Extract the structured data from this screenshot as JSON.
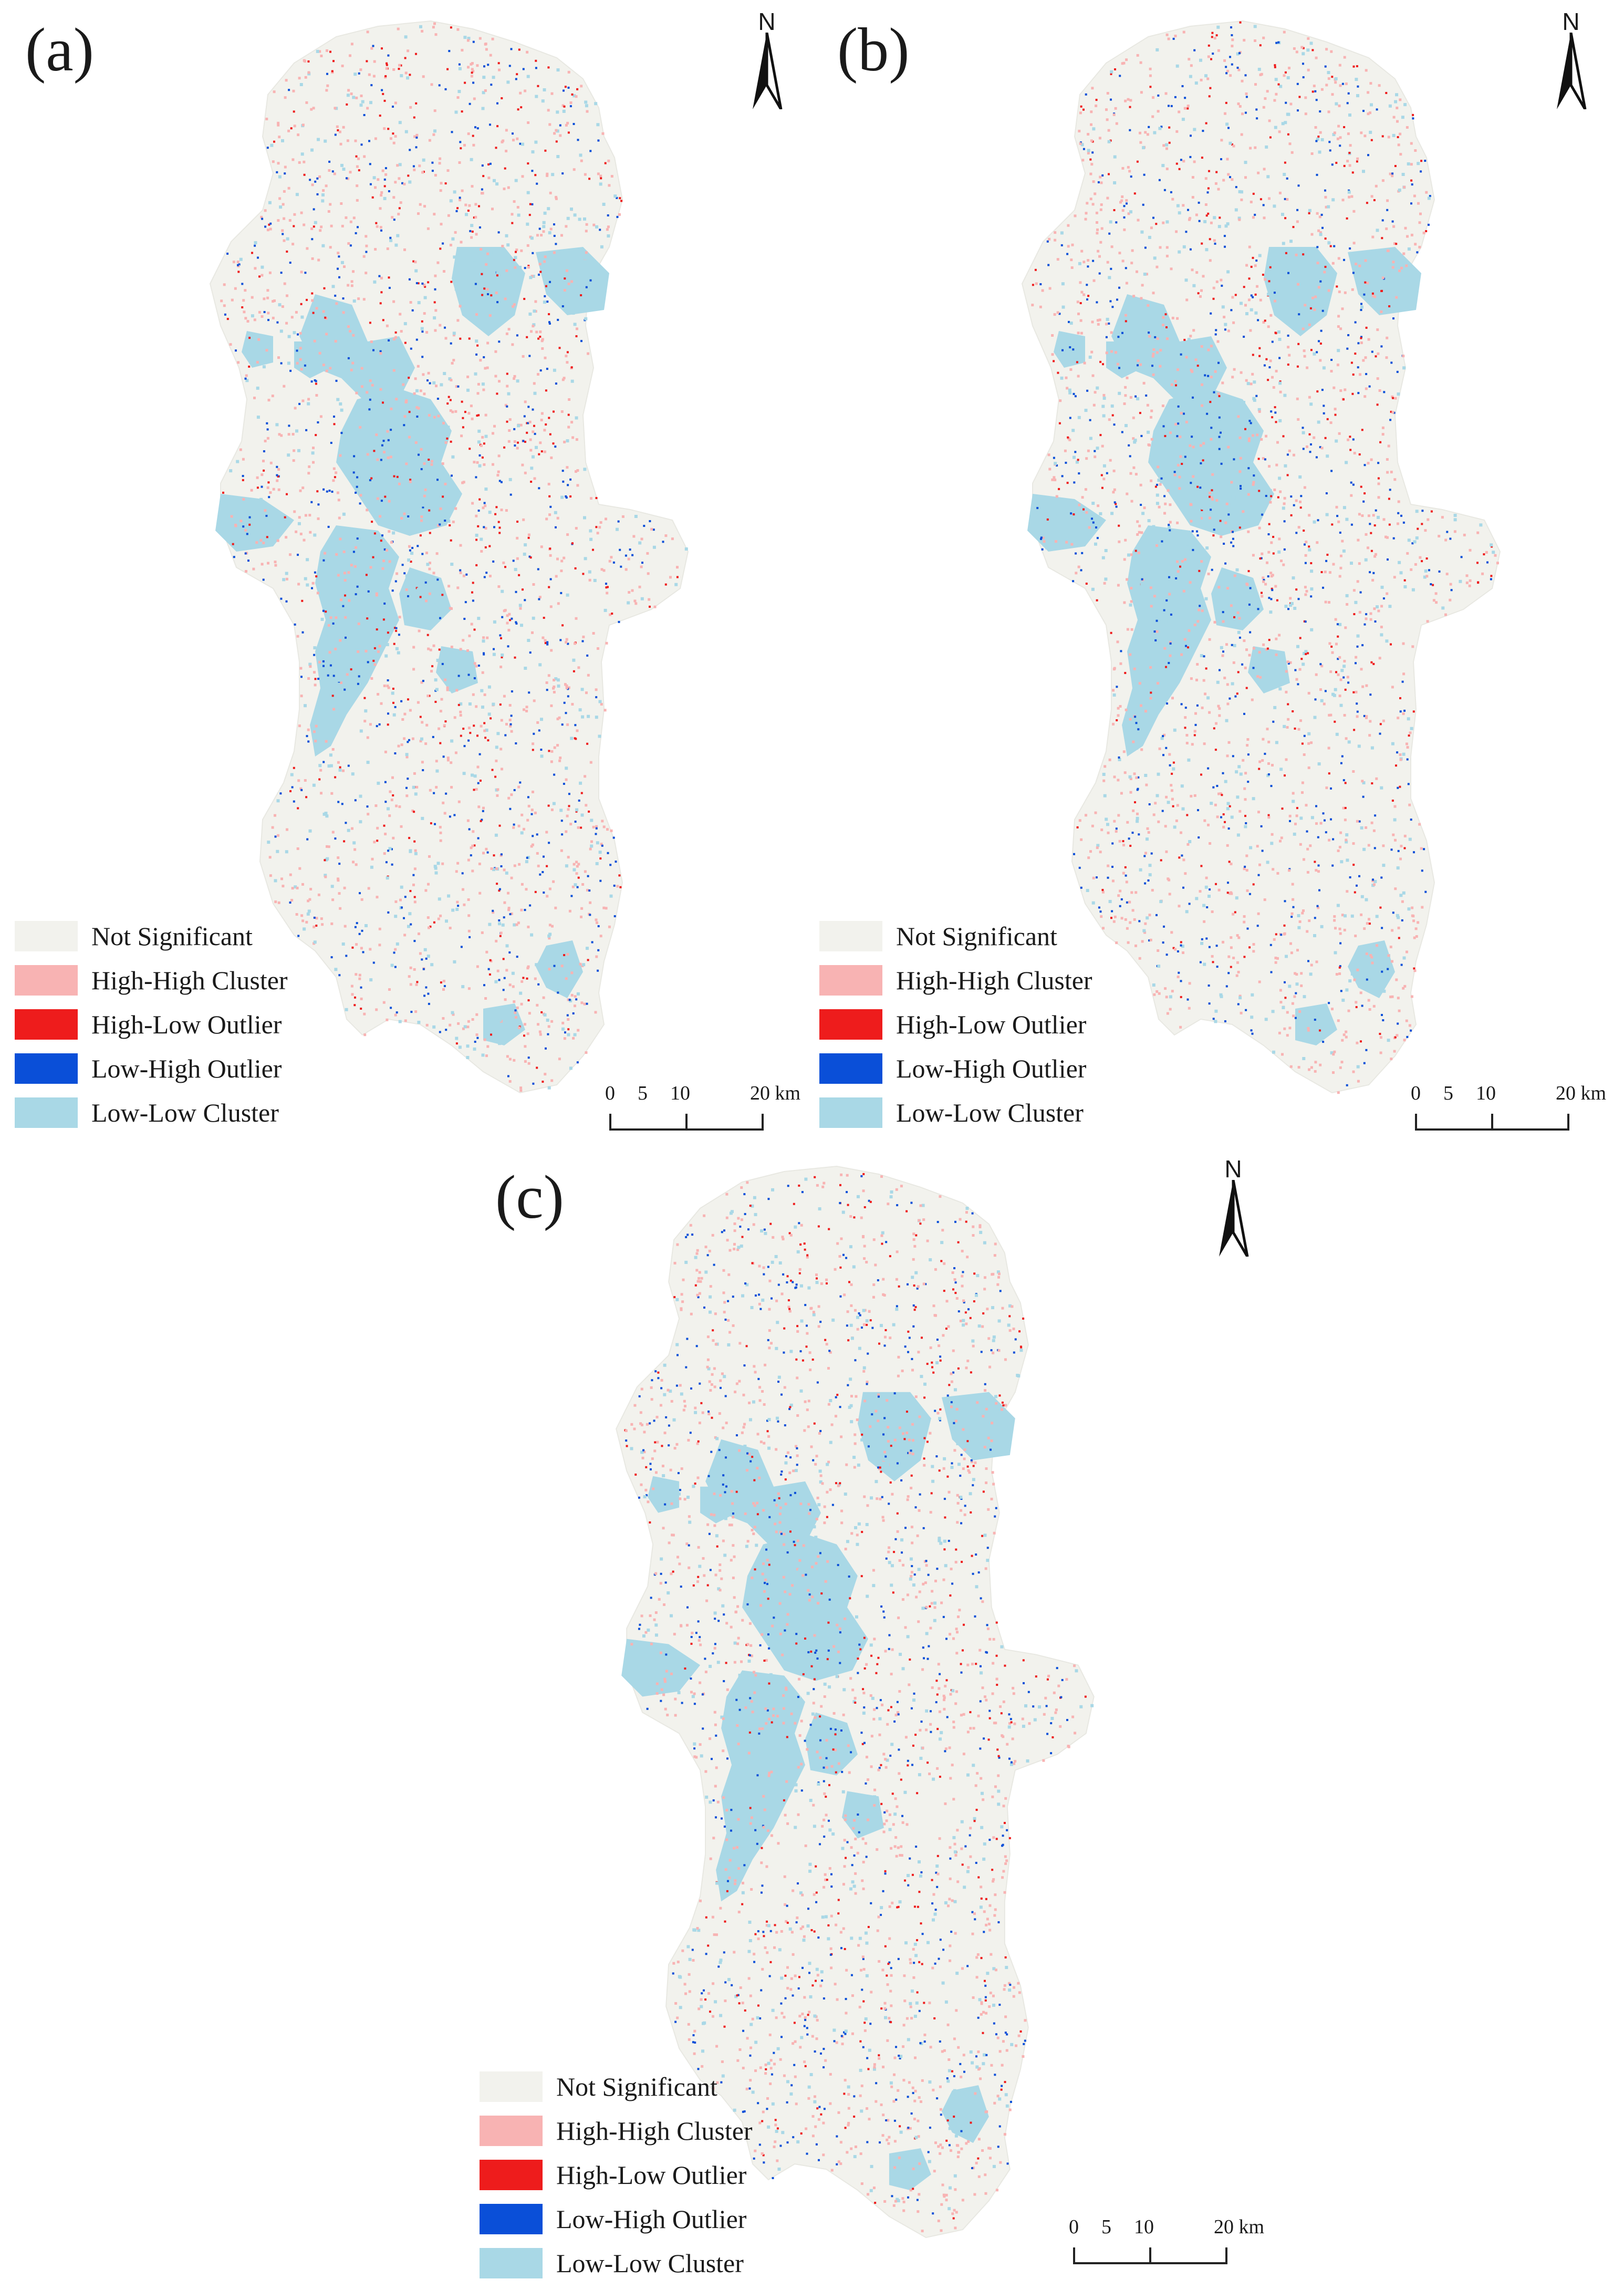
{
  "colors": {
    "not_significant": "#f2f2ed",
    "high_high_cluster": "#f8b3b3",
    "high_low_outlier": "#ee1c1c",
    "low_high_outlier": "#0a4fd8",
    "low_low_cluster": "#a9d8e6"
  },
  "legend": [
    {
      "label": "Not Significant",
      "color_key": "not_significant"
    },
    {
      "label": "High-High Cluster",
      "color_key": "high_high_cluster"
    },
    {
      "label": "High-Low Outlier",
      "color_key": "high_low_outlier"
    },
    {
      "label": "Low-High Outlier",
      "color_key": "low_high_outlier"
    },
    {
      "label": "Low-Low Cluster",
      "color_key": "low_low_cluster"
    }
  ],
  "north_letter": "N",
  "scalebar": {
    "ticks": [
      "0",
      "5",
      "10",
      "20 km"
    ]
  },
  "panels": [
    {
      "id": "a",
      "label": "(a)"
    },
    {
      "id": "b",
      "label": "(b)"
    },
    {
      "id": "c",
      "label": "(c)"
    }
  ]
}
